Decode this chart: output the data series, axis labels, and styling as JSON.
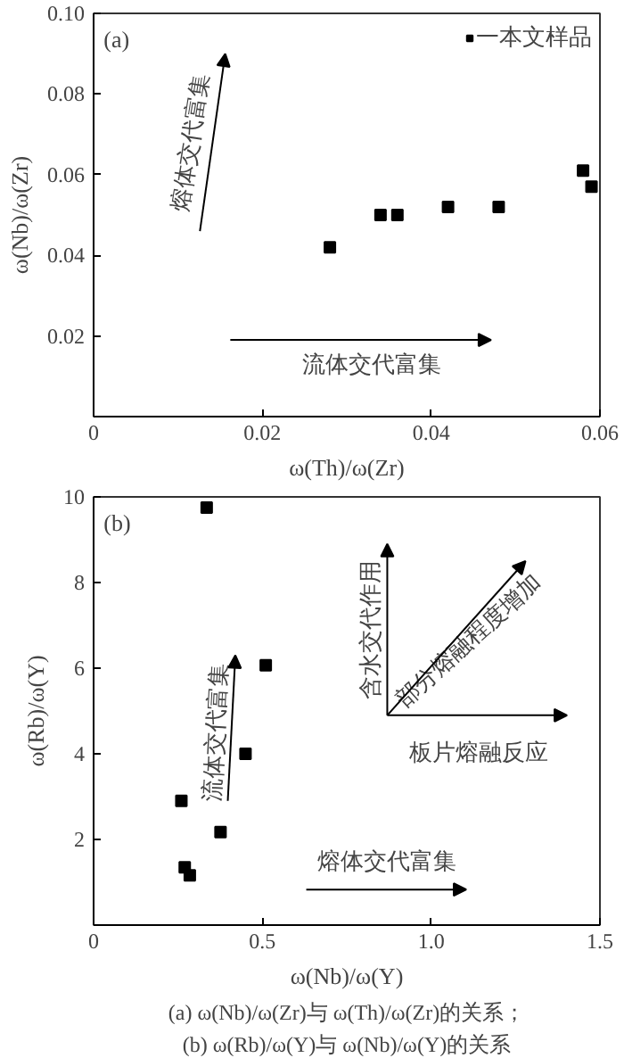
{
  "chart_data": [
    {
      "type": "scatter",
      "xlabel": "ω(Th)/ω(Zr)",
      "ylabel": "ω(Nb)/ω(Zr)",
      "xlim": [
        0,
        0.06
      ],
      "ylim": [
        0,
        0.1
      ],
      "xticks": [
        0,
        0.02,
        0.04,
        0.06
      ],
      "yticks": [
        0.02,
        0.04,
        0.06,
        0.08,
        {
          "value": 0.1,
          "label": "0.10"
        }
      ],
      "x": [
        0.028,
        0.034,
        0.036,
        0.042,
        0.048,
        0.058,
        0.059
      ],
      "series": [
        {
          "name": "一本文样品",
          "color": "#000000",
          "values": [
            0.042,
            0.05,
            0.05,
            0.052,
            0.052,
            0.061,
            0.057
          ]
        }
      ],
      "marker": "square",
      "legend": "top right",
      "grid": false,
      "annotations": [
        "(a)",
        "熔体交代富集",
        "流体交代富集"
      ]
    },
    {
      "type": "scatter",
      "xlabel": "ω(Nb)/ω(Y)",
      "ylabel": "ω(Rb)/ω(Y)",
      "xlim": [
        0,
        1.5
      ],
      "ylim": [
        0,
        10
      ],
      "xticks": [
        0,
        0.5,
        {
          "value": 1,
          "label": "1.0"
        },
        1.5
      ],
      "yticks": [
        2,
        4,
        6,
        8,
        10
      ],
      "x": [
        0.26,
        0.335,
        0.51,
        0.45,
        0.376,
        0.27,
        0.285
      ],
      "series": [
        {
          "color": "#000000",
          "values": [
            2.9,
            9.75,
            6.07,
            4.0,
            2.17,
            1.35,
            1.16
          ]
        }
      ],
      "marker": "square",
      "legend": false,
      "grid": false,
      "annotations": [
        "(b)",
        "流体交代富集",
        "熔体交代富集",
        "含水交代作用",
        "部分熔融程度增加",
        "板片熔融反应",
        "(a) ω(Nb)/ω(Zr)与 ω(Th)/ω(Zr)的关系；",
        "(b) ω(Rb)/ω(Y)与 ω(Nb)/ω(Y)的关系"
      ]
    }
  ]
}
